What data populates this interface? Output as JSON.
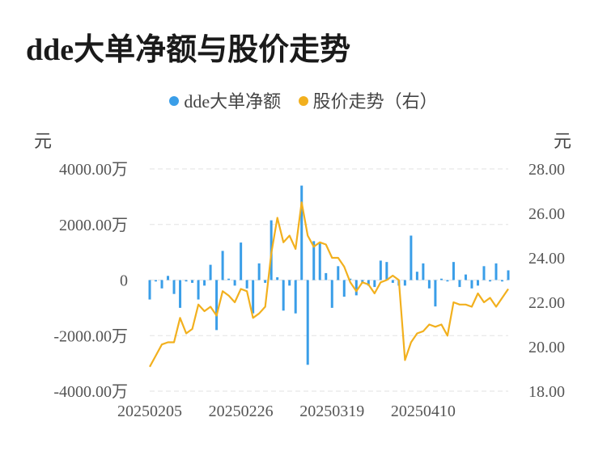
{
  "title": "dde大单净额与股价走势",
  "legend": {
    "bar_label": "dde大单净额",
    "line_label": "股价走势（右）"
  },
  "units": {
    "left": "元",
    "right": "元"
  },
  "colors": {
    "bar": "#3a9ee8",
    "line": "#f2b01e",
    "grid": "#e2e2e2"
  },
  "chart_data": {
    "type": "bar+line",
    "title": "dde大单净额与股价走势",
    "left_axis": {
      "ylabel": "元",
      "ylim": [
        -4000,
        4000
      ],
      "ticks": [
        4000,
        2000,
        0,
        -2000,
        -4000
      ],
      "tick_labels": [
        "4000.00万",
        "2000.00万",
        "0",
        "-2000.00万",
        "-4000.00万"
      ]
    },
    "right_axis": {
      "ylabel": "元",
      "ylim": [
        18,
        28
      ],
      "ticks": [
        28,
        26,
        24,
        22,
        20,
        18
      ],
      "tick_labels": [
        "28.00",
        "26.00",
        "24.00",
        "22.00",
        "20.00",
        "18.00"
      ]
    },
    "x_tick_labels": [
      "20250205",
      "20250226",
      "20250319",
      "20250410"
    ],
    "x_tick_indices": [
      0,
      15,
      30,
      45
    ],
    "grid": true,
    "legend_position": "top",
    "series": [
      {
        "name": "dde大单净额",
        "type": "bar",
        "axis": "left",
        "values": [
          -700,
          -50,
          -300,
          150,
          -500,
          -1000,
          -50,
          -100,
          -700,
          -200,
          550,
          -1800,
          1050,
          50,
          -200,
          1350,
          -300,
          -1200,
          600,
          -100,
          2150,
          100,
          -1100,
          -200,
          -1200,
          3400,
          -3050,
          1400,
          1350,
          250,
          -1000,
          500,
          -600,
          50,
          -550,
          -100,
          -200,
          -250,
          700,
          650,
          -100,
          -200,
          -200,
          1600,
          300,
          600,
          -300,
          -950,
          50,
          -50,
          650,
          -250,
          200,
          -300,
          -200,
          500,
          -50,
          600,
          -50,
          350
        ]
      },
      {
        "name": "股价走势（右）",
        "type": "line",
        "axis": "right",
        "values": [
          19.1,
          19.6,
          20.1,
          20.2,
          20.2,
          21.3,
          20.6,
          20.8,
          21.9,
          21.6,
          21.8,
          21.4,
          22.5,
          22.3,
          22.0,
          22.6,
          22.5,
          21.3,
          21.5,
          21.8,
          24.2,
          25.8,
          24.7,
          25.0,
          24.4,
          26.5,
          25.0,
          24.5,
          24.7,
          24.6,
          24.0,
          24.0,
          23.6,
          22.9,
          22.5,
          22.9,
          22.8,
          22.4,
          22.9,
          23.0,
          23.2,
          23.0,
          19.4,
          20.2,
          20.6,
          20.7,
          21.0,
          20.9,
          21.0,
          20.5,
          22.0,
          21.9,
          21.9,
          21.8,
          22.4,
          22.0,
          22.2,
          21.8,
          22.2,
          22.6
        ]
      }
    ]
  }
}
